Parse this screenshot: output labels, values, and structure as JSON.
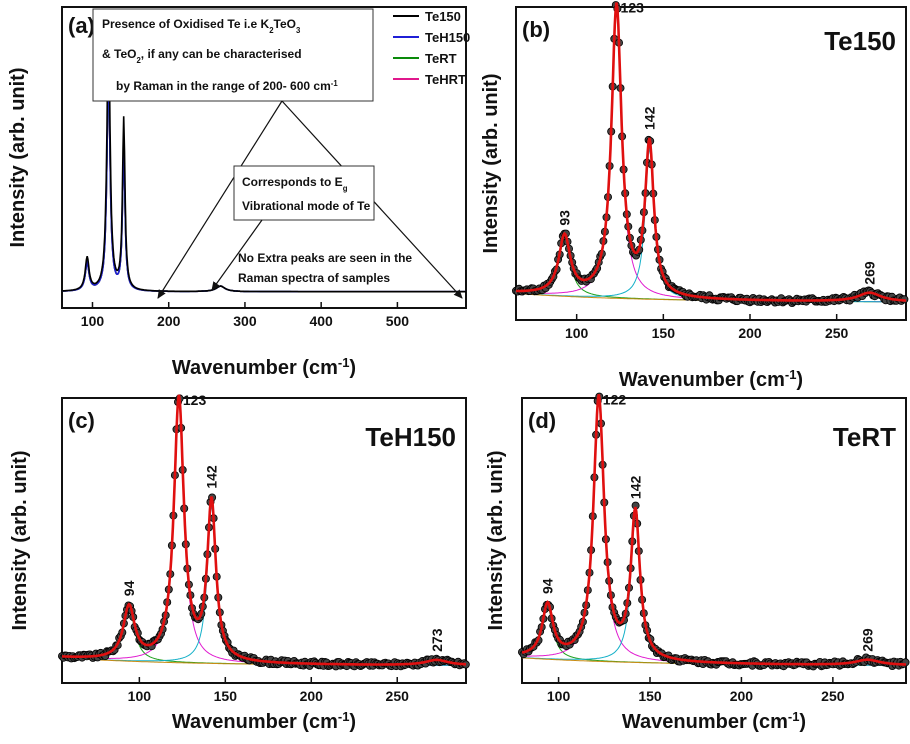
{
  "chart_data": [
    {
      "type": "line",
      "panel_label": "(a)",
      "xlabel": "Wavenumber (cm",
      "xlabel_sup": "-1",
      "xlabel_tail": ")",
      "ylabel": "Intensity (arb. unit)",
      "xlim": [
        60,
        590
      ],
      "xticks": [
        100,
        200,
        300,
        400,
        500
      ],
      "legend": "top-right",
      "series": [
        {
          "name": "Te150",
          "color": "#000000"
        },
        {
          "name": "TeH150",
          "color": "#1f1fd6"
        },
        {
          "name": "TeRT",
          "color": "#0a8a0a"
        },
        {
          "name": "TeHRT",
          "color": "#e0188c"
        }
      ],
      "annotations": {
        "box_line1": "Presence of Oxidised Te i.e K",
        "box_line1_sub1": "2",
        "box_line1_mid": "TeO",
        "box_line1_sub2": "3",
        "box_line2": "& TeO",
        "box_line2_sub": "2",
        "box_line2_tail": ", if any can be characterised",
        "box_line3": "by Raman in the range of 200- 600 cm",
        "box_line3_sup": "-1",
        "eg_line1": "Corresponds to E",
        "eg_line1_sub": "g",
        "eg_line2": "Vibrational mode of Te",
        "note_line1": "No Extra peaks are seen in the",
        "note_line2": "Raman spectra of samples"
      }
    },
    {
      "type": "line",
      "panel_label": "(b)",
      "sample": "Te150",
      "xlabel": "Wavenumber (cm",
      "xlabel_sup": "-1",
      "xlabel_tail": ")",
      "ylabel": "Intensity (arb. unit)",
      "xlim": [
        65,
        290
      ],
      "xticks": [
        100,
        150,
        200,
        250
      ],
      "peaks": [
        {
          "label": "93",
          "x": 93,
          "height": 0.2
        },
        {
          "label": "123",
          "x": 123,
          "height": 1.0
        },
        {
          "label": "142",
          "x": 142,
          "height": 0.52
        },
        {
          "label": "269",
          "x": 269,
          "height": 0.03
        }
      ]
    },
    {
      "type": "line",
      "panel_label": "(c)",
      "sample": "TeH150",
      "xlabel": "Wavenumber (cm",
      "xlabel_sup": "-1",
      "xlabel_tail": ")",
      "ylabel": "Intensity (arb. unit)",
      "xlim": [
        55,
        290
      ],
      "xticks": [
        100,
        150,
        200,
        250
      ],
      "peaks": [
        {
          "label": "94",
          "x": 94,
          "height": 0.2
        },
        {
          "label": "123",
          "x": 123,
          "height": 1.0
        },
        {
          "label": "142",
          "x": 142,
          "height": 0.6
        },
        {
          "label": "273",
          "x": 273,
          "height": 0.02
        }
      ]
    },
    {
      "type": "line",
      "panel_label": "(d)",
      "sample": "TeRT",
      "xlabel": "Wavenumber (cm",
      "xlabel_sup": "-1",
      "xlabel_tail": ")",
      "ylabel": "Intensity (arb. unit)",
      "xlim": [
        80,
        290
      ],
      "xticks": [
        100,
        150,
        200,
        250
      ],
      "peaks": [
        {
          "label": "94",
          "x": 94,
          "height": 0.2
        },
        {
          "label": "122",
          "x": 122,
          "height": 1.0
        },
        {
          "label": "142",
          "x": 142,
          "height": 0.56
        },
        {
          "label": "269",
          "x": 269,
          "height": 0.02
        }
      ]
    }
  ]
}
